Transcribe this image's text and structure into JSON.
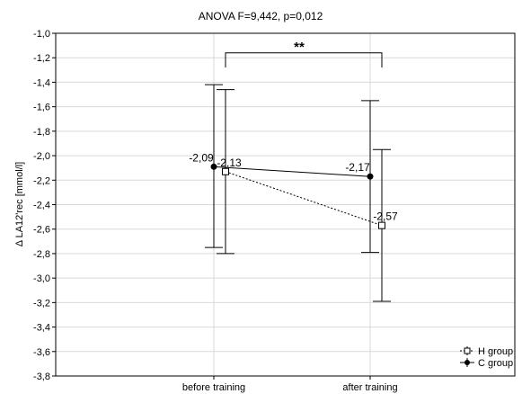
{
  "chart_data": {
    "type": "line",
    "title": "ANOVA F=9,442, p=0,012",
    "xlabel": "",
    "ylabel": "Δ LA12'rec [mmol/l]",
    "categories": [
      "before training",
      "after training"
    ],
    "ylim": [
      -3.8,
      -1.0
    ],
    "yticks": [
      "-1,0",
      "-1,2",
      "-1,4",
      "-1,6",
      "-1,8",
      "-2,0",
      "-2,2",
      "-2,4",
      "-2,6",
      "-2,8",
      "-3,0",
      "-3,2",
      "-3,4",
      "-3,6",
      "-3,8"
    ],
    "grid": true,
    "legend_position": "bottom-right",
    "series": [
      {
        "name": "C group",
        "marker": "filled-circle",
        "line_style": "solid",
        "color": "#000000",
        "values": [
          -2.09,
          -2.17
        ],
        "labels": [
          "-2,09",
          "-2,17"
        ],
        "ci_lower": [
          -2.75,
          -2.79
        ],
        "ci_upper": [
          -1.42,
          -1.55
        ]
      },
      {
        "name": "H group",
        "marker": "open-square",
        "line_style": "dotted",
        "color": "#000000",
        "values": [
          -2.13,
          -2.57
        ],
        "labels": [
          "-2,13",
          "-2,57"
        ],
        "ci_lower": [
          -2.8,
          -3.19
        ],
        "ci_upper": [
          -1.46,
          -1.95
        ]
      }
    ],
    "annotations": [
      {
        "type": "significance-bracket",
        "text": "**",
        "between": [
          "before training",
          "after training"
        ],
        "y": -1.25
      }
    ]
  }
}
